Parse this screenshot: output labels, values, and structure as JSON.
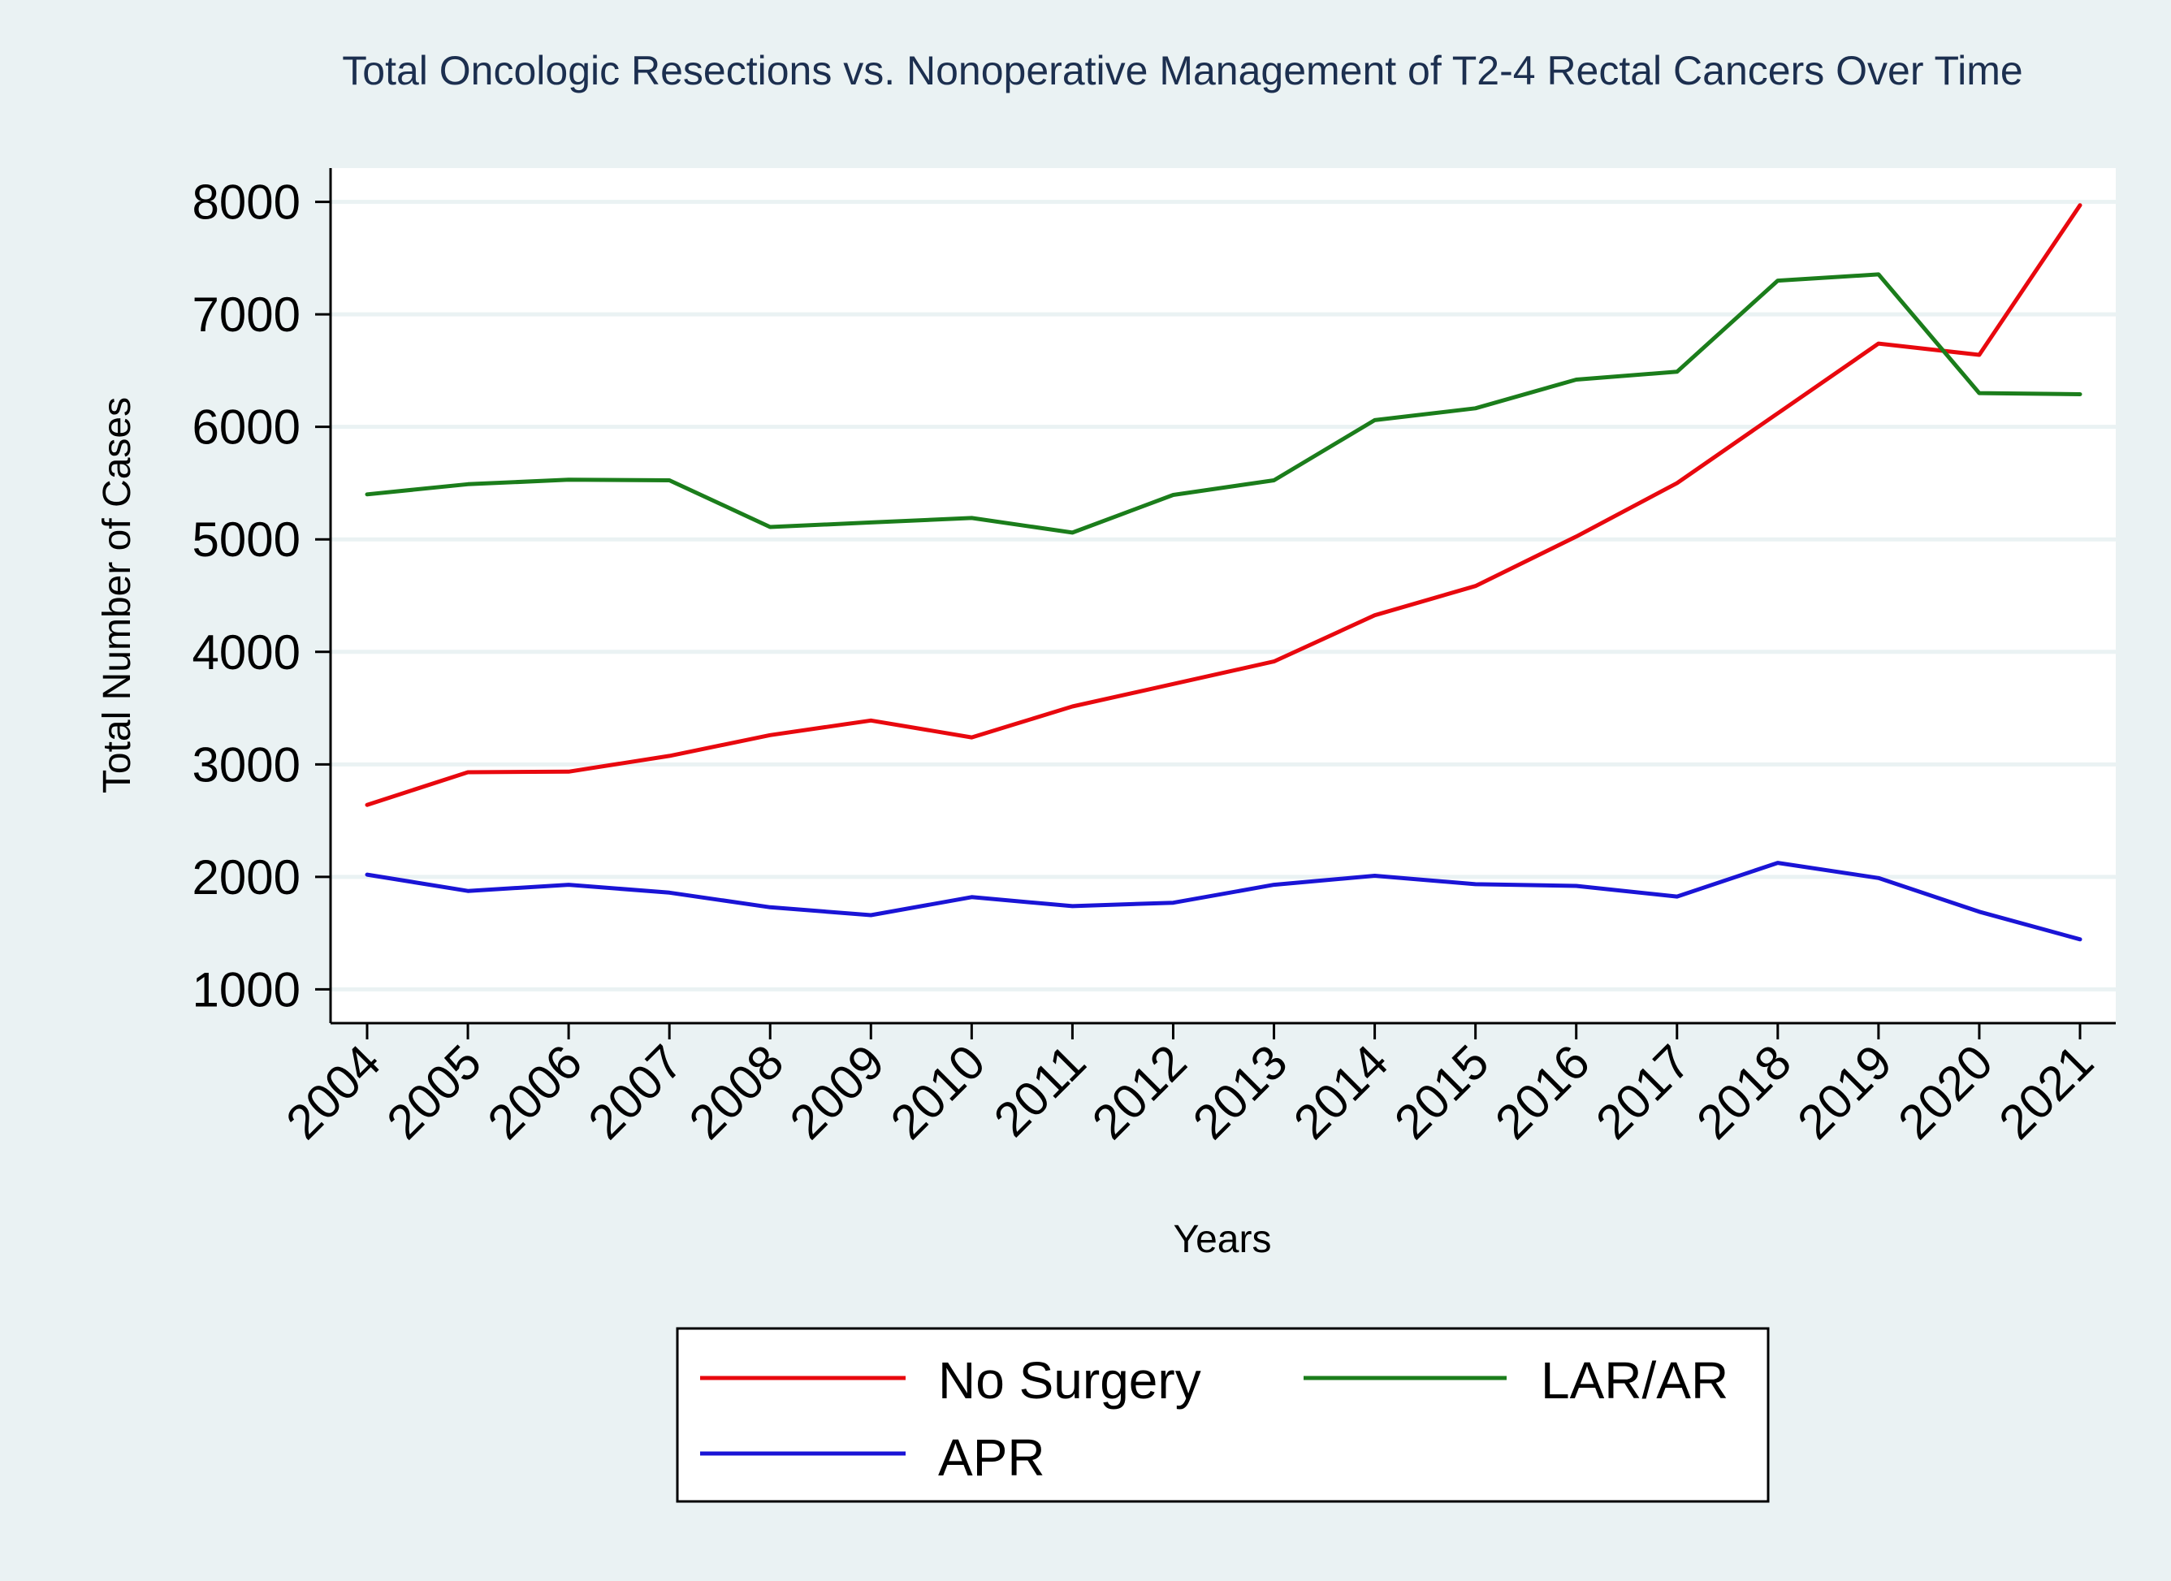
{
  "chart_data": {
    "type": "line",
    "title": "Total Oncologic Resections vs. Nonoperative Management of T2-4 Rectal Cancers Over Time",
    "xlabel": "Years",
    "ylabel": "Total Number of Cases",
    "categories": [
      "2004",
      "2005",
      "2006",
      "2007",
      "2008",
      "2009",
      "2010",
      "2011",
      "2012",
      "2013",
      "2014",
      "2015",
      "2016",
      "2017",
      "2018",
      "2019",
      "2020",
      "2021"
    ],
    "ylim": [
      700,
      8300
    ],
    "yticks": [
      1000,
      2000,
      3000,
      4000,
      5000,
      6000,
      7000,
      8000
    ],
    "grid": true,
    "legend_position": "bottom",
    "series": [
      {
        "name": "No Surgery",
        "color": "#e8080e",
        "values": [
          2640,
          2930,
          2935,
          3075,
          3260,
          3390,
          3240,
          3515,
          3715,
          3915,
          4325,
          4585,
          5025,
          5500,
          6120,
          6740,
          6640,
          7970
        ]
      },
      {
        "name": "LAR/AR",
        "color": "#1b7d1b",
        "values": [
          5400,
          5490,
          5530,
          5525,
          5110,
          5150,
          5190,
          5060,
          5395,
          5525,
          6060,
          6165,
          6420,
          6490,
          7300,
          7355,
          6300,
          6290
        ]
      },
      {
        "name": "APR",
        "color": "#1a14d6",
        "values": [
          2020,
          1875,
          1930,
          1860,
          1730,
          1660,
          1820,
          1740,
          1770,
          1930,
          2010,
          1935,
          1920,
          1825,
          2125,
          1990,
          1690,
          1445
        ]
      }
    ]
  }
}
